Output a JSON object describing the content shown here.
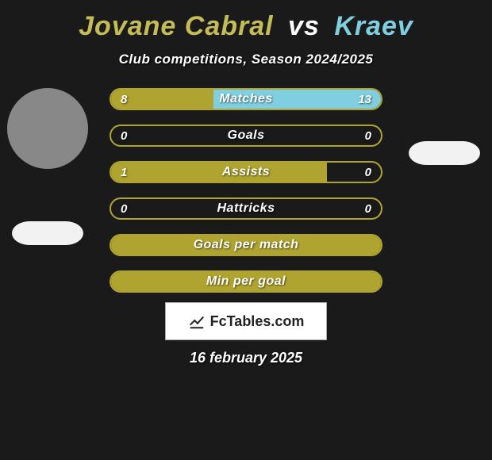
{
  "title": {
    "player1": "Jovane Cabral",
    "vs": "vs",
    "player2": "Kraev"
  },
  "subtitle": "Club competitions, Season 2024/2025",
  "colors": {
    "player1_bar": "#b0a430",
    "player2_bar": "#7fcfe0",
    "border": "#b0a430",
    "background": "#1a1a1a",
    "title_p1": "#c4bc56",
    "title_p2": "#7fcfe0",
    "logo_bg": "#f2f2f2"
  },
  "bars": [
    {
      "label": "Matches",
      "left_val": "8",
      "right_val": "13",
      "left_pct": 38,
      "right_pct": 62
    },
    {
      "label": "Goals",
      "left_val": "0",
      "right_val": "0",
      "left_pct": 0,
      "right_pct": 0
    },
    {
      "label": "Assists",
      "left_val": "1",
      "right_val": "0",
      "left_pct": 80,
      "right_pct": 0
    },
    {
      "label": "Hattricks",
      "left_val": "0",
      "right_val": "0",
      "left_pct": 0,
      "right_pct": 0
    },
    {
      "label": "Goals per match",
      "left_val": "",
      "right_val": "",
      "left_pct": 100,
      "right_pct": 0
    },
    {
      "label": "Min per goal",
      "left_val": "",
      "right_val": "",
      "left_pct": 100,
      "right_pct": 0
    }
  ],
  "brand": "FcTables.com",
  "date": "16 february 2025"
}
